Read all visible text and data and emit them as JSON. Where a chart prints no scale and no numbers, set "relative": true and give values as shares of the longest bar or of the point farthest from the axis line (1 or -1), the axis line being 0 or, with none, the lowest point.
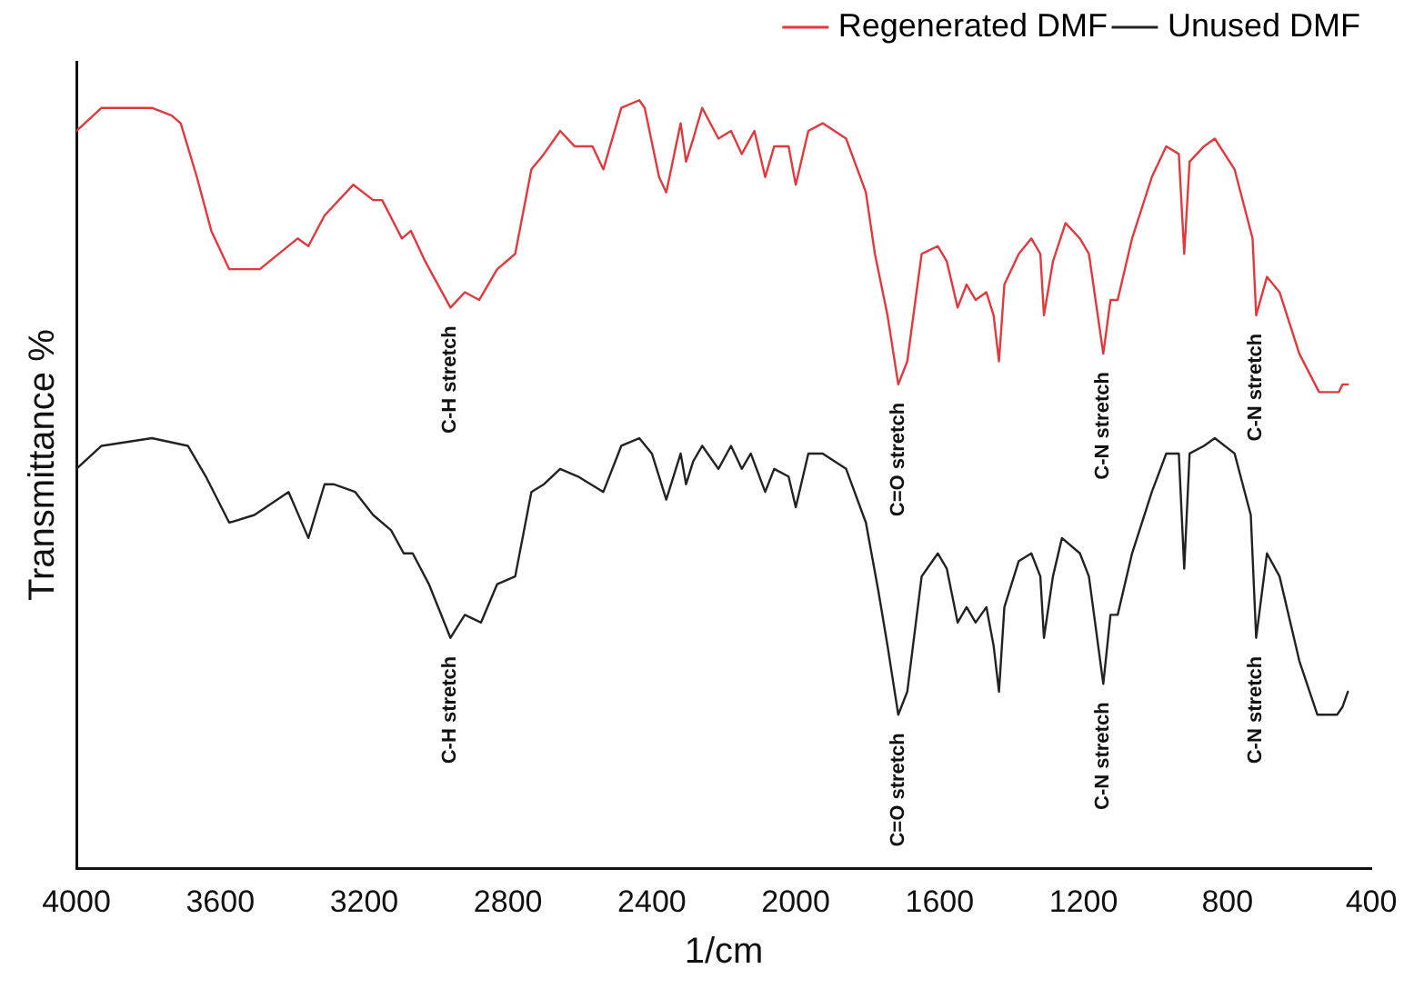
{
  "chart_data": {
    "type": "line",
    "xlabel": "1/cm",
    "ylabel": "Transmittance %",
    "relative": true,
    "xlim": [
      4000,
      400
    ],
    "xticks": [
      4000,
      3600,
      3200,
      2800,
      2400,
      2000,
      1600,
      1200,
      800,
      400
    ],
    "legend": "top right",
    "marker": "none",
    "line_style": "solid",
    "grid": false,
    "series": [
      {
        "name": "Regenerated DMF",
        "color": "#e0393e",
        "x": [
          4000,
          3930,
          3790,
          3735,
          3710,
          3665,
          3625,
          3575,
          3490,
          3385,
          3355,
          3310,
          3230,
          3175,
          3150,
          3095,
          3070,
          3030,
          2960,
          2920,
          2880,
          2830,
          2780,
          2735,
          2700,
          2655,
          2615,
          2565,
          2535,
          2485,
          2435,
          2420,
          2380,
          2360,
          2320,
          2305,
          2285,
          2260,
          2215,
          2180,
          2150,
          2115,
          2085,
          2060,
          2020,
          2000,
          1965,
          1925,
          1860,
          1805,
          1780,
          1745,
          1715,
          1690,
          1650,
          1605,
          1580,
          1550,
          1525,
          1500,
          1470,
          1450,
          1435,
          1420,
          1380,
          1345,
          1320,
          1310,
          1285,
          1250,
          1210,
          1185,
          1145,
          1125,
          1105,
          1065,
          1010,
          970,
          935,
          920,
          905,
          865,
          835,
          780,
          730,
          720,
          690,
          655,
          600,
          545,
          490,
          480,
          465
        ],
        "values": [
          0.96,
          0.99,
          0.99,
          0.98,
          0.97,
          0.9,
          0.83,
          0.78,
          0.78,
          0.82,
          0.81,
          0.85,
          0.89,
          0.87,
          0.87,
          0.82,
          0.83,
          0.79,
          0.73,
          0.75,
          0.74,
          0.78,
          0.8,
          0.91,
          0.93,
          0.96,
          0.94,
          0.94,
          0.91,
          0.99,
          1,
          0.99,
          0.9,
          0.88,
          0.97,
          0.92,
          0.95,
          0.99,
          0.95,
          0.96,
          0.93,
          0.96,
          0.9,
          0.94,
          0.94,
          0.89,
          0.96,
          0.97,
          0.95,
          0.88,
          0.8,
          0.72,
          0.63,
          0.66,
          0.8,
          0.81,
          0.79,
          0.73,
          0.76,
          0.74,
          0.75,
          0.72,
          0.66,
          0.76,
          0.8,
          0.82,
          0.8,
          0.72,
          0.79,
          0.84,
          0.82,
          0.8,
          0.67,
          0.74,
          0.74,
          0.82,
          0.9,
          0.94,
          0.93,
          0.8,
          0.92,
          0.94,
          0.95,
          0.91,
          0.82,
          0.72,
          0.77,
          0.75,
          0.67,
          0.62,
          0.62,
          0.63,
          0.63
        ]
      },
      {
        "name": "Unused DMF",
        "color": "#222222",
        "x": [
          4000,
          3930,
          3790,
          3690,
          3640,
          3575,
          3505,
          3410,
          3355,
          3310,
          3285,
          3225,
          3175,
          3125,
          3090,
          3065,
          3020,
          2960,
          2920,
          2875,
          2830,
          2780,
          2735,
          2700,
          2655,
          2605,
          2535,
          2485,
          2435,
          2400,
          2360,
          2320,
          2305,
          2285,
          2260,
          2215,
          2180,
          2150,
          2125,
          2085,
          2060,
          2020,
          2000,
          1965,
          1925,
          1860,
          1805,
          1770,
          1745,
          1715,
          1690,
          1650,
          1605,
          1580,
          1550,
          1525,
          1500,
          1470,
          1450,
          1435,
          1420,
          1380,
          1345,
          1320,
          1310,
          1285,
          1260,
          1210,
          1185,
          1145,
          1125,
          1105,
          1065,
          1010,
          970,
          935,
          920,
          905,
          865,
          835,
          780,
          735,
          720,
          690,
          655,
          600,
          550,
          495,
          480,
          465
        ],
        "values": [
          0.52,
          0.55,
          0.56,
          0.55,
          0.51,
          0.45,
          0.46,
          0.49,
          0.43,
          0.5,
          0.5,
          0.49,
          0.46,
          0.44,
          0.41,
          0.41,
          0.37,
          0.3,
          0.33,
          0.32,
          0.37,
          0.38,
          0.49,
          0.5,
          0.52,
          0.51,
          0.49,
          0.55,
          0.56,
          0.54,
          0.48,
          0.54,
          0.5,
          0.53,
          0.55,
          0.52,
          0.55,
          0.52,
          0.54,
          0.49,
          0.52,
          0.51,
          0.47,
          0.54,
          0.54,
          0.52,
          0.45,
          0.36,
          0.29,
          0.2,
          0.23,
          0.38,
          0.41,
          0.39,
          0.32,
          0.34,
          0.32,
          0.34,
          0.29,
          0.23,
          0.34,
          0.4,
          0.41,
          0.38,
          0.3,
          0.38,
          0.43,
          0.41,
          0.38,
          0.24,
          0.33,
          0.33,
          0.41,
          0.49,
          0.54,
          0.54,
          0.39,
          0.54,
          0.55,
          0.56,
          0.54,
          0.46,
          0.3,
          0.41,
          0.38,
          0.27,
          0.2,
          0.2,
          0.21,
          0.23
        ]
      }
    ],
    "annotations": [
      {
        "text": "C-H stretch",
        "x": 2960,
        "y": 0.73
      },
      {
        "text": "C=O stretch",
        "x": 1715,
        "y": 0.63
      },
      {
        "text": "C-N stretch",
        "x": 1145,
        "y": 0.67
      },
      {
        "text": "C-N stretch",
        "x": 720,
        "y": 0.72
      },
      {
        "text": "C-H stretch",
        "x": 2960,
        "y": 0.3
      },
      {
        "text": "C=O stretch",
        "x": 1715,
        "y": 0.2
      },
      {
        "text": "C-N stretch",
        "x": 1145,
        "y": 0.24
      },
      {
        "text": "C-N stretch",
        "x": 720,
        "y": 0.3
      }
    ]
  }
}
